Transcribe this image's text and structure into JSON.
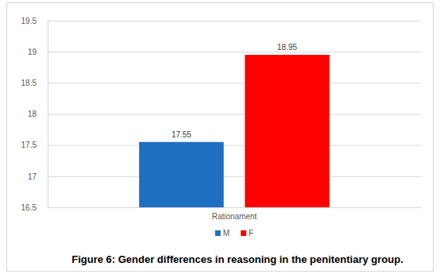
{
  "chart_data": {
    "type": "bar",
    "title": "Figure 6: Gender differences in reasoning in the penitentiary group.",
    "categories": [
      "Rationament"
    ],
    "series": [
      {
        "name": "M",
        "color": "#1f6fc1",
        "values": [
          17.55
        ]
      },
      {
        "name": "F",
        "color": "#ff0000",
        "values": [
          18.95
        ]
      }
    ],
    "ylim": [
      16.5,
      19.5
    ],
    "yticks": [
      16.5,
      17,
      17.5,
      18,
      18.5,
      19,
      19.5
    ],
    "grid": true,
    "legend": "bottom",
    "data_labels": true
  }
}
